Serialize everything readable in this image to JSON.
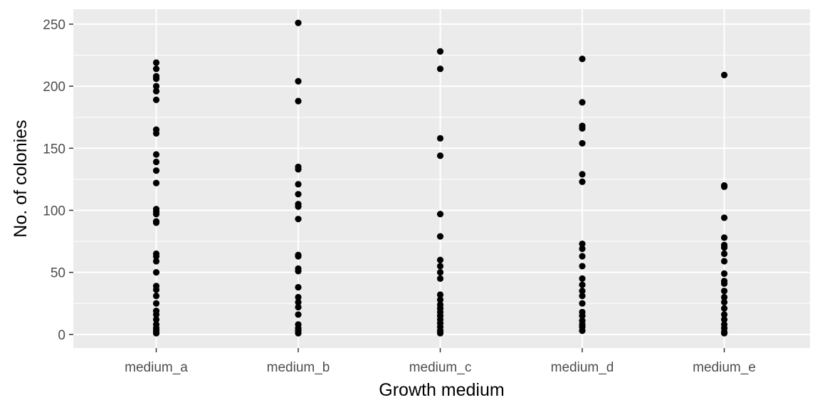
{
  "chart_data": {
    "type": "scatter",
    "xlabel": "Growth medium",
    "ylabel": "No. of colonies",
    "categories": [
      "medium_a",
      "medium_b",
      "medium_c",
      "medium_d",
      "medium_e"
    ],
    "ylim": [
      -11,
      262
    ],
    "yticks": [
      0,
      50,
      100,
      150,
      200,
      250
    ],
    "grid": true,
    "colors": {
      "panel": "#ebebeb",
      "grid": "#ffffff",
      "point": "#000000"
    },
    "series": [
      {
        "category": "medium_a",
        "values": [
          219,
          214,
          208,
          206,
          200,
          196,
          189,
          165,
          162,
          145,
          139,
          132,
          122,
          101,
          99,
          97,
          91,
          90,
          65,
          63,
          59,
          50,
          39,
          36,
          31,
          25,
          19,
          16,
          12,
          8,
          5,
          3,
          1
        ]
      },
      {
        "category": "medium_b",
        "values": [
          251,
          204,
          188,
          135,
          133,
          121,
          113,
          105,
          103,
          93,
          64,
          63,
          53,
          51,
          38,
          30,
          26,
          22,
          16,
          8,
          5,
          3,
          1
        ]
      },
      {
        "category": "medium_c",
        "values": [
          228,
          214,
          158,
          144,
          97,
          79,
          60,
          55,
          50,
          45,
          32,
          28,
          24,
          21,
          18,
          15,
          12,
          9,
          6,
          3,
          1
        ]
      },
      {
        "category": "medium_d",
        "values": [
          222,
          187,
          168,
          166,
          154,
          129,
          123,
          73,
          69,
          63,
          55,
          45,
          40,
          35,
          31,
          25,
          18,
          15,
          11,
          8,
          6,
          3
        ]
      },
      {
        "category": "medium_e",
        "values": [
          209,
          120,
          119,
          94,
          78,
          72,
          70,
          65,
          59,
          49,
          43,
          41,
          35,
          30,
          26,
          21,
          16,
          12,
          8,
          5,
          2,
          1
        ]
      }
    ]
  }
}
